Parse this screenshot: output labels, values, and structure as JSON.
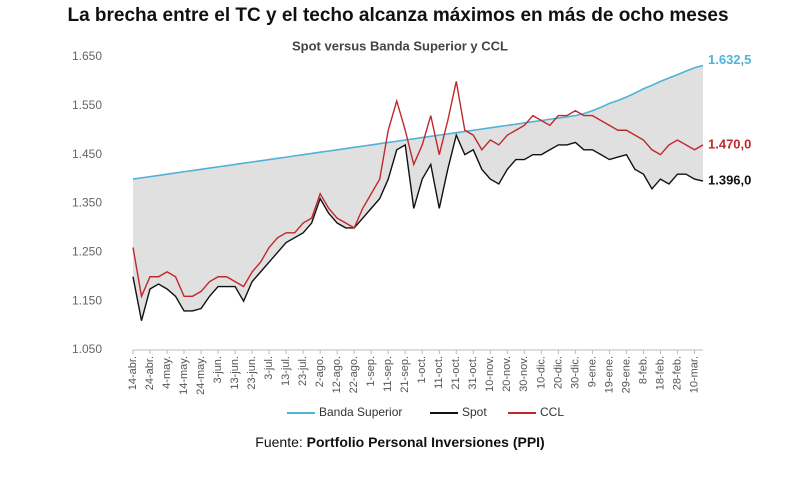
{
  "chart_data": {
    "type": "line",
    "title": "La brecha entre el TC y el techo alcanza máximos en más de ocho meses",
    "subtitle": "Spot versus Banda Superior y CCL",
    "source_prefix": "Fuente:",
    "source": "Portfolio Personal Inversiones (PPI)",
    "categories": [
      "14-abr.",
      null,
      "24-abr.",
      null,
      "4-may.",
      null,
      "14-may.",
      null,
      "24-may.",
      null,
      "3-jun.",
      null,
      "13-jun.",
      null,
      "23-jun.",
      null,
      "3-jul.",
      null,
      "13-jul.",
      null,
      "23-jul.",
      null,
      "2-ago.",
      null,
      "12-ago.",
      null,
      "22-ago.",
      null,
      "1-sep.",
      null,
      "11-sep.",
      null,
      "21-sep.",
      null,
      "1-oct.",
      null,
      "11-oct.",
      null,
      "21-oct.",
      null,
      "31-oct.",
      null,
      "10-nov.",
      null,
      "20-nov.",
      null,
      "30-nov.",
      null,
      "10-dic.",
      null,
      "20-dic.",
      null,
      "30-dic.",
      null,
      "9-ene.",
      null,
      "19-ene.",
      null,
      "29-ene.",
      null,
      "8-feb.",
      null,
      "18-feb.",
      null,
      "28-feb.",
      null,
      "10-mar.",
      null
    ],
    "series": [
      {
        "name": "Banda Superior",
        "color": "#4fb3d9",
        "values": [
          1400,
          1402.5,
          1405,
          1407.5,
          1410,
          1412.5,
          1415,
          1417.5,
          1420,
          1422.5,
          1425,
          1427.5,
          1430,
          1432.5,
          1435,
          1437.5,
          1440,
          1442.5,
          1445,
          1447.5,
          1450,
          1452.5,
          1455,
          1457.5,
          1460,
          1462.5,
          1465,
          1467.5,
          1470,
          1472.5,
          1475,
          1477.5,
          1480,
          1482.5,
          1485,
          1487.5,
          1490,
          1492.5,
          1495,
          1497.5,
          1500,
          1502.5,
          1505,
          1507.5,
          1510,
          1512.5,
          1515,
          1517.5,
          1520,
          1522.5,
          1525,
          1527.5,
          1530,
          1534,
          1540,
          1547,
          1555,
          1561,
          1568,
          1576,
          1585,
          1592,
          1600,
          1607,
          1614,
          1621,
          1628,
          1632.5
        ],
        "value_labels": [
          null,
          null,
          null,
          null,
          null,
          null,
          null,
          null,
          null,
          null,
          null,
          null,
          null,
          null,
          null,
          null,
          null,
          null,
          null,
          null,
          null,
          null,
          null,
          null,
          null,
          null,
          null,
          null,
          null,
          null,
          null,
          null,
          null,
          null,
          null,
          null,
          null,
          null,
          null,
          null,
          null,
          null,
          null,
          null,
          null,
          null,
          null,
          null,
          null,
          null,
          null,
          null,
          null,
          null,
          null,
          null,
          null,
          null,
          null,
          null,
          null,
          null,
          null,
          null,
          null,
          null,
          null,
          "1.632,5"
        ]
      },
      {
        "name": "Spot",
        "color": "#111111",
        "values": [
          1200,
          1110,
          1175,
          1185,
          1175,
          1160,
          1130,
          1130,
          1135,
          1160,
          1180,
          1180,
          1180,
          1150,
          1190,
          1210,
          1230,
          1250,
          1270,
          1280,
          1290,
          1310,
          1360,
          1330,
          1310,
          1300,
          1300,
          1320,
          1340,
          1360,
          1400,
          1460,
          1470,
          1340,
          1400,
          1430,
          1340,
          1420,
          1490,
          1450,
          1460,
          1420,
          1400,
          1390,
          1420,
          1440,
          1440,
          1450,
          1450,
          1460,
          1470,
          1470,
          1475,
          1460,
          1460,
          1450,
          1440,
          1445,
          1450,
          1420,
          1410,
          1380,
          1400,
          1390,
          1410,
          1410,
          1400,
          1396
        ],
        "value_labels": [
          null,
          null,
          null,
          null,
          null,
          null,
          null,
          null,
          null,
          null,
          null,
          null,
          null,
          null,
          null,
          null,
          null,
          null,
          null,
          null,
          null,
          null,
          null,
          null,
          null,
          null,
          null,
          null,
          null,
          null,
          null,
          null,
          null,
          null,
          null,
          null,
          null,
          null,
          null,
          null,
          null,
          null,
          null,
          null,
          null,
          null,
          null,
          null,
          null,
          null,
          null,
          null,
          null,
          null,
          null,
          null,
          null,
          null,
          null,
          null,
          null,
          null,
          null,
          null,
          null,
          null,
          null,
          "1.396,0"
        ]
      },
      {
        "name": "CCL",
        "color": "#c0282d",
        "values": [
          1260,
          1160,
          1200,
          1200,
          1210,
          1200,
          1160,
          1160,
          1170,
          1190,
          1200,
          1200,
          1190,
          1180,
          1210,
          1230,
          1260,
          1280,
          1290,
          1290,
          1310,
          1320,
          1370,
          1340,
          1320,
          1310,
          1300,
          1340,
          1370,
          1400,
          1500,
          1560,
          1500,
          1430,
          1470,
          1530,
          1450,
          1520,
          1600,
          1500,
          1490,
          1460,
          1480,
          1470,
          1490,
          1500,
          1510,
          1530,
          1520,
          1510,
          1530,
          1530,
          1540,
          1530,
          1530,
          1520,
          1510,
          1500,
          1500,
          1490,
          1480,
          1460,
          1450,
          1470,
          1480,
          1470,
          1460,
          1470
        ],
        "value_labels": [
          null,
          null,
          null,
          null,
          null,
          null,
          null,
          null,
          null,
          null,
          null,
          null,
          null,
          null,
          null,
          null,
          null,
          null,
          null,
          null,
          null,
          null,
          null,
          null,
          null,
          null,
          null,
          null,
          null,
          null,
          null,
          null,
          null,
          null,
          null,
          null,
          null,
          null,
          null,
          null,
          null,
          null,
          null,
          null,
          null,
          null,
          null,
          null,
          null,
          null,
          null,
          null,
          null,
          null,
          null,
          null,
          null,
          null,
          null,
          null,
          null,
          null,
          null,
          null,
          null,
          null,
          null,
          "1.470,0"
        ]
      }
    ],
    "fill_color": "#e0e0e0",
    "ylim": [
      1050,
      1650
    ],
    "yticks": [
      {
        "value": 1050,
        "label": "1.050"
      },
      {
        "value": 1150,
        "label": "1.150"
      },
      {
        "value": 1250,
        "label": "1.250"
      },
      {
        "value": 1350,
        "label": "1.350"
      },
      {
        "value": 1450,
        "label": "1.450"
      },
      {
        "value": 1550,
        "label": "1.550"
      },
      {
        "value": 1650,
        "label": "1.650"
      }
    ],
    "grid": false
  }
}
